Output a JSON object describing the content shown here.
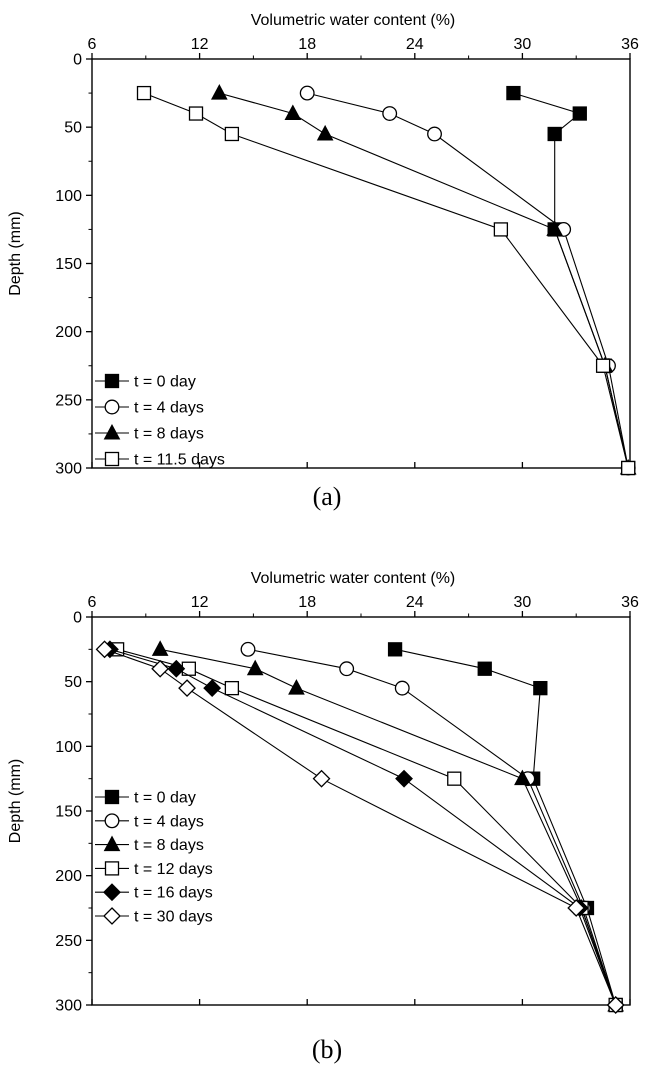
{
  "chart_data": [
    {
      "panel": "(a)",
      "type": "line",
      "xlabel": "Volumetric water content (%)",
      "ylabel": "Depth (mm)",
      "xlim": [
        6,
        36
      ],
      "ylim": [
        0,
        300
      ],
      "x_axis_position": "top",
      "y_axis_inverted": true,
      "xticks": [
        6,
        12,
        18,
        24,
        30,
        36
      ],
      "yticks": [
        0,
        50,
        100,
        150,
        200,
        250,
        300
      ],
      "grid": false,
      "legend_position": "bottom-left",
      "series": [
        {
          "name": "t = 0 day",
          "marker": "square-filled",
          "points": [
            [
              29.5,
              25
            ],
            [
              33.2,
              40
            ],
            [
              31.8,
              55
            ],
            [
              31.8,
              125
            ],
            [
              34.6,
              225
            ],
            [
              35.9,
              300
            ]
          ]
        },
        {
          "name": "t = 4 days",
          "marker": "circle-open",
          "points": [
            [
              18.0,
              25
            ],
            [
              22.6,
              40
            ],
            [
              25.1,
              55
            ],
            [
              32.3,
              125
            ],
            [
              34.8,
              225
            ],
            [
              35.9,
              300
            ]
          ]
        },
        {
          "name": "t = 8 days",
          "marker": "triangle-filled",
          "points": [
            [
              13.1,
              25
            ],
            [
              17.2,
              40
            ],
            [
              19.0,
              55
            ],
            [
              31.8,
              125
            ],
            [
              34.6,
              225
            ],
            [
              35.9,
              300
            ]
          ]
        },
        {
          "name": "t = 11.5 days",
          "marker": "square-open",
          "points": [
            [
              8.9,
              25
            ],
            [
              11.8,
              40
            ],
            [
              13.8,
              55
            ],
            [
              28.8,
              125
            ],
            [
              34.5,
              225
            ],
            [
              35.9,
              300
            ]
          ]
        }
      ]
    },
    {
      "panel": "(b)",
      "type": "line",
      "xlabel": "Volumetric water content (%)",
      "ylabel": "Depth (mm)",
      "xlim": [
        6,
        36
      ],
      "ylim": [
        0,
        300
      ],
      "x_axis_position": "top",
      "y_axis_inverted": true,
      "xticks": [
        6,
        12,
        18,
        24,
        30,
        36
      ],
      "yticks": [
        0,
        50,
        100,
        150,
        200,
        250,
        300
      ],
      "grid": false,
      "legend_position": "bottom-left",
      "series": [
        {
          "name": "t = 0 day",
          "marker": "square-filled",
          "points": [
            [
              22.9,
              25
            ],
            [
              27.9,
              40
            ],
            [
              31.0,
              55
            ],
            [
              30.6,
              125
            ],
            [
              33.6,
              225
            ],
            [
              35.2,
              300
            ]
          ]
        },
        {
          "name": "t = 4 days",
          "marker": "circle-open",
          "points": [
            [
              14.7,
              25
            ],
            [
              20.2,
              40
            ],
            [
              23.3,
              55
            ],
            [
              30.3,
              125
            ],
            [
              33.4,
              225
            ],
            [
              35.2,
              300
            ]
          ]
        },
        {
          "name": "t = 8 days",
          "marker": "triangle-filled",
          "points": [
            [
              9.8,
              25
            ],
            [
              15.1,
              40
            ],
            [
              17.4,
              55
            ],
            [
              30.0,
              125
            ],
            [
              33.3,
              225
            ],
            [
              35.2,
              300
            ]
          ]
        },
        {
          "name": "t = 12 days",
          "marker": "square-open",
          "points": [
            [
              7.4,
              25
            ],
            [
              11.4,
              40
            ],
            [
              13.8,
              55
            ],
            [
              26.2,
              125
            ],
            [
              33.3,
              225
            ],
            [
              35.2,
              300
            ]
          ]
        },
        {
          "name": "t = 16 days",
          "marker": "diamond-filled",
          "points": [
            [
              7.0,
              25
            ],
            [
              10.7,
              40
            ],
            [
              12.7,
              55
            ],
            [
              23.4,
              125
            ],
            [
              33.2,
              225
            ],
            [
              35.2,
              300
            ]
          ]
        },
        {
          "name": "t = 30 days",
          "marker": "diamond-open",
          "points": [
            [
              6.7,
              25
            ],
            [
              9.8,
              40
            ],
            [
              11.3,
              55
            ],
            [
              18.8,
              125
            ],
            [
              33.0,
              225
            ],
            [
              35.2,
              300
            ]
          ]
        }
      ]
    }
  ]
}
